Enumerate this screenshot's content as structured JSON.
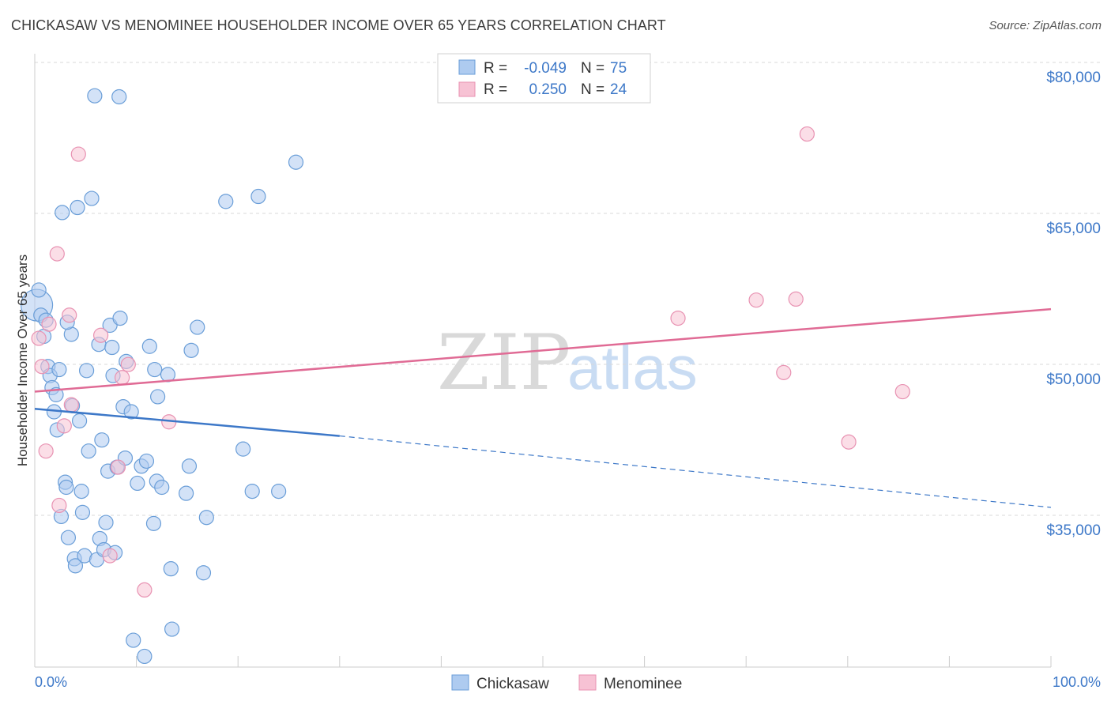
{
  "title": "CHICKASAW VS MENOMINEE HOUSEHOLDER INCOME OVER 65 YEARS CORRELATION CHART",
  "source": "Source: ZipAtlas.com",
  "watermark": {
    "zip": "ZIP",
    "atlas": "atlas"
  },
  "colors": {
    "blue": "#3d78c8",
    "blue_fill": "#aecbf0",
    "blue_stroke": "#6a9ed8",
    "pink": "#e06b95",
    "pink_fill": "#f7c2d4",
    "pink_stroke": "#e892b2",
    "grid": "#d9d9d9"
  },
  "legend": {
    "rows": [
      {
        "r_label": "R =",
        "r_value": "-0.049",
        "n_label": "N =",
        "n_value": "75"
      },
      {
        "r_label": "R =",
        "r_value": "0.250",
        "n_label": "N =",
        "n_value": "24"
      }
    ]
  },
  "bottom_legend": [
    "Chickasaw",
    "Menominee"
  ],
  "chart_data": {
    "type": "scatter",
    "title": "CHICKASAW VS MENOMINEE HOUSEHOLDER INCOME OVER 65 YEARS CORRELATION CHART",
    "xlabel": "",
    "ylabel": "Householder Income Over 65 years",
    "xlim": [
      0,
      100
    ],
    "ylim": [
      22000,
      82000
    ],
    "x_tick_labels": [
      "0.0%",
      "100.0%"
    ],
    "y_ticks": [
      35000,
      50000,
      65000,
      80000
    ],
    "y_tick_labels": [
      "$35,000",
      "$50,000",
      "$65,000",
      "$80,000"
    ],
    "series": [
      {
        "name": "Chickasaw",
        "color": "#3d78c8",
        "trend": {
          "x": [
            0,
            30
          ],
          "y": [
            47000,
            44300
          ],
          "dashed_to": [
            100,
            37200
          ]
        },
        "points": [
          {
            "x": 0.2,
            "y": 57300,
            "big": true
          },
          {
            "x": 0.4,
            "y": 58800
          },
          {
            "x": 0.6,
            "y": 56300
          },
          {
            "x": 0.9,
            "y": 54200
          },
          {
            "x": 1.1,
            "y": 55800
          },
          {
            "x": 1.3,
            "y": 51200
          },
          {
            "x": 1.5,
            "y": 50300
          },
          {
            "x": 1.7,
            "y": 49100
          },
          {
            "x": 1.9,
            "y": 46700
          },
          {
            "x": 2.1,
            "y": 48400
          },
          {
            "x": 2.2,
            "y": 44900
          },
          {
            "x": 2.4,
            "y": 50900
          },
          {
            "x": 2.6,
            "y": 36300
          },
          {
            "x": 2.7,
            "y": 66500
          },
          {
            "x": 3.0,
            "y": 39700
          },
          {
            "x": 3.1,
            "y": 39200
          },
          {
            "x": 3.3,
            "y": 34200
          },
          {
            "x": 3.6,
            "y": 54400
          },
          {
            "x": 3.7,
            "y": 47300
          },
          {
            "x": 3.9,
            "y": 32100
          },
          {
            "x": 4.0,
            "y": 31400
          },
          {
            "x": 4.2,
            "y": 67000
          },
          {
            "x": 4.4,
            "y": 45800
          },
          {
            "x": 4.6,
            "y": 38800
          },
          {
            "x": 4.7,
            "y": 36700
          },
          {
            "x": 4.9,
            "y": 32400
          },
          {
            "x": 5.1,
            "y": 50800
          },
          {
            "x": 5.3,
            "y": 42800
          },
          {
            "x": 5.6,
            "y": 67900
          },
          {
            "x": 5.9,
            "y": 78100
          },
          {
            "x": 6.1,
            "y": 32000
          },
          {
            "x": 6.3,
            "y": 53400
          },
          {
            "x": 6.4,
            "y": 34100
          },
          {
            "x": 6.6,
            "y": 43900
          },
          {
            "x": 6.8,
            "y": 33000
          },
          {
            "x": 7.0,
            "y": 35700
          },
          {
            "x": 7.2,
            "y": 40800
          },
          {
            "x": 7.4,
            "y": 55300
          },
          {
            "x": 7.6,
            "y": 53100
          },
          {
            "x": 7.7,
            "y": 50300
          },
          {
            "x": 7.9,
            "y": 32700
          },
          {
            "x": 8.1,
            "y": 41200
          },
          {
            "x": 8.3,
            "y": 78000
          },
          {
            "x": 8.4,
            "y": 56000
          },
          {
            "x": 8.7,
            "y": 47200
          },
          {
            "x": 8.9,
            "y": 42100
          },
          {
            "x": 9.0,
            "y": 51700
          },
          {
            "x": 9.5,
            "y": 46700
          },
          {
            "x": 9.7,
            "y": 24000
          },
          {
            "x": 10.1,
            "y": 39600
          },
          {
            "x": 10.5,
            "y": 41300
          },
          {
            "x": 10.8,
            "y": 22400
          },
          {
            "x": 11.0,
            "y": 41800
          },
          {
            "x": 11.3,
            "y": 53200
          },
          {
            "x": 11.7,
            "y": 35600
          },
          {
            "x": 11.8,
            "y": 50900
          },
          {
            "x": 12.1,
            "y": 48200
          },
          {
            "x": 12.0,
            "y": 39800
          },
          {
            "x": 12.5,
            "y": 39200
          },
          {
            "x": 13.1,
            "y": 50400
          },
          {
            "x": 13.4,
            "y": 31100
          },
          {
            "x": 13.5,
            "y": 25100
          },
          {
            "x": 14.9,
            "y": 38600
          },
          {
            "x": 15.2,
            "y": 41300
          },
          {
            "x": 15.4,
            "y": 52800
          },
          {
            "x": 16.0,
            "y": 55100
          },
          {
            "x": 16.6,
            "y": 30700
          },
          {
            "x": 16.9,
            "y": 36200
          },
          {
            "x": 18.8,
            "y": 67600
          },
          {
            "x": 20.5,
            "y": 43000
          },
          {
            "x": 21.4,
            "y": 38800
          },
          {
            "x": 22.0,
            "y": 68100
          },
          {
            "x": 24.0,
            "y": 38800
          },
          {
            "x": 25.7,
            "y": 71500
          },
          {
            "x": 3.2,
            "y": 55600
          }
        ]
      },
      {
        "name": "Menominee",
        "color": "#e06b95",
        "trend": {
          "x": [
            0,
            100
          ],
          "y": [
            48700,
            56900
          ]
        },
        "points": [
          {
            "x": 0.4,
            "y": 54000
          },
          {
            "x": 0.7,
            "y": 51200
          },
          {
            "x": 1.1,
            "y": 42800
          },
          {
            "x": 1.4,
            "y": 55400
          },
          {
            "x": 2.2,
            "y": 62400
          },
          {
            "x": 2.4,
            "y": 37400
          },
          {
            "x": 2.9,
            "y": 45300
          },
          {
            "x": 3.4,
            "y": 56300
          },
          {
            "x": 3.6,
            "y": 47400
          },
          {
            "x": 4.3,
            "y": 72300
          },
          {
            "x": 6.5,
            "y": 54300
          },
          {
            "x": 7.4,
            "y": 32400
          },
          {
            "x": 8.2,
            "y": 41200
          },
          {
            "x": 8.6,
            "y": 50100
          },
          {
            "x": 9.2,
            "y": 51400
          },
          {
            "x": 10.8,
            "y": 29000
          },
          {
            "x": 13.2,
            "y": 45700
          },
          {
            "x": 63.3,
            "y": 56000
          },
          {
            "x": 71.0,
            "y": 57800
          },
          {
            "x": 73.7,
            "y": 50600
          },
          {
            "x": 74.9,
            "y": 57900
          },
          {
            "x": 76.0,
            "y": 74300
          },
          {
            "x": 80.1,
            "y": 43700
          },
          {
            "x": 85.4,
            "y": 48700
          }
        ]
      }
    ]
  }
}
